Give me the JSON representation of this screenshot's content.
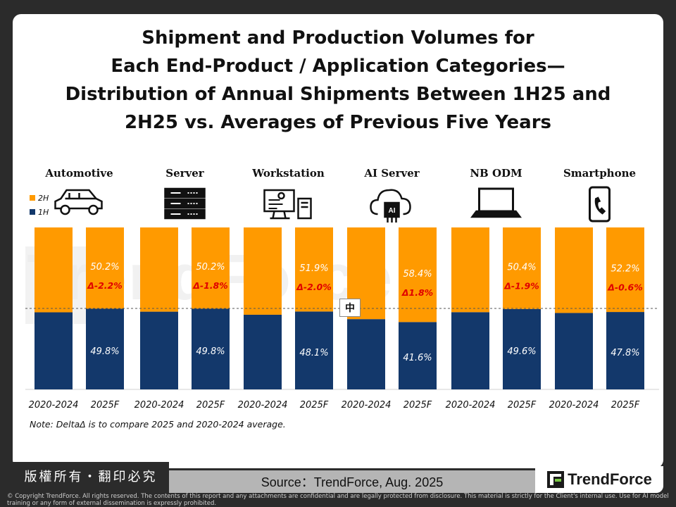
{
  "title_lines": [
    "Shipment and Production Volumes for",
    "Each End-Product / Application Categories—",
    "Distribution of Annual Shipments Between 1H25 and",
    "2H25 vs. Averages of Previous Five Years"
  ],
  "watermark": "TrendForce",
  "legend": [
    {
      "label": "2H",
      "color": "#FF9A00"
    },
    {
      "label": "1H",
      "color": "#13386B"
    }
  ],
  "colors": {
    "h1": "#13386B",
    "h2": "#FF9A00",
    "delta": "#E00000"
  },
  "note": "Note: DeltaΔ is to compare 2025 and 2020-2024 average.",
  "badge": "中",
  "footer": {
    "rights": "版權所有・翻印必究",
    "source": "Source：TrendForce, Aug. 2025",
    "logo": "TrendForce",
    "copyright": "© Copyright TrendForce. All rights reserved. The contents of this report and any attachments are confidential and are legally protected from disclosure. This material is strictly for the Client's internal use. Use for AI model training or any form of external dissemination is expressly prohibited."
  },
  "chart_data": {
    "type": "bar",
    "stacked": true,
    "percent_axis": true,
    "ylim": [
      0,
      100
    ],
    "reference_line": 50,
    "groups": [
      {
        "name": "Automotive",
        "icon": "car-icon",
        "bars": [
          {
            "label": "2020-2024",
            "h1": 47.6,
            "h2": 52.4,
            "show_values": false
          },
          {
            "label": "2025F",
            "h1": 49.8,
            "h2": 50.2,
            "h1_text": "49.8%",
            "h2_text": "50.2%",
            "delta": "Δ-2.2%"
          }
        ]
      },
      {
        "name": "Server",
        "icon": "server-icon",
        "bars": [
          {
            "label": "2020-2024",
            "h1": 48.0,
            "h2": 52.0,
            "show_values": false
          },
          {
            "label": "2025F",
            "h1": 49.8,
            "h2": 50.2,
            "h1_text": "49.8%",
            "h2_text": "50.2%",
            "delta": "Δ-1.8%"
          }
        ]
      },
      {
        "name": "Workstation",
        "icon": "workstation-icon",
        "bars": [
          {
            "label": "2020-2024",
            "h1": 46.1,
            "h2": 53.9,
            "show_values": false
          },
          {
            "label": "2025F",
            "h1": 48.1,
            "h2": 51.9,
            "h1_text": "48.1%",
            "h2_text": "51.9%",
            "delta": "Δ-2.0%"
          }
        ]
      },
      {
        "name": "AI Server",
        "icon": "ai-cloud-icon",
        "bars": [
          {
            "label": "2020-2024",
            "h1": 43.4,
            "h2": 56.6,
            "show_values": false
          },
          {
            "label": "2025F",
            "h1": 41.6,
            "h2": 58.4,
            "h1_text": "41.6%",
            "h2_text": "58.4%",
            "delta": "Δ1.8%"
          }
        ]
      },
      {
        "name": "NB ODM",
        "icon": "laptop-icon",
        "bars": [
          {
            "label": "2020-2024",
            "h1": 47.7,
            "h2": 52.3,
            "show_values": false
          },
          {
            "label": "2025F",
            "h1": 49.6,
            "h2": 50.4,
            "h1_text": "49.6%",
            "h2_text": "50.4%",
            "delta": "Δ-1.9%"
          }
        ]
      },
      {
        "name": "Smartphone",
        "icon": "smartphone-icon",
        "bars": [
          {
            "label": "2020-2024",
            "h1": 47.2,
            "h2": 52.8,
            "show_values": false
          },
          {
            "label": "2025F",
            "h1": 47.8,
            "h2": 52.2,
            "h1_text": "47.8%",
            "h2_text": "52.2%",
            "delta": "Δ-0.6%"
          }
        ]
      }
    ]
  }
}
